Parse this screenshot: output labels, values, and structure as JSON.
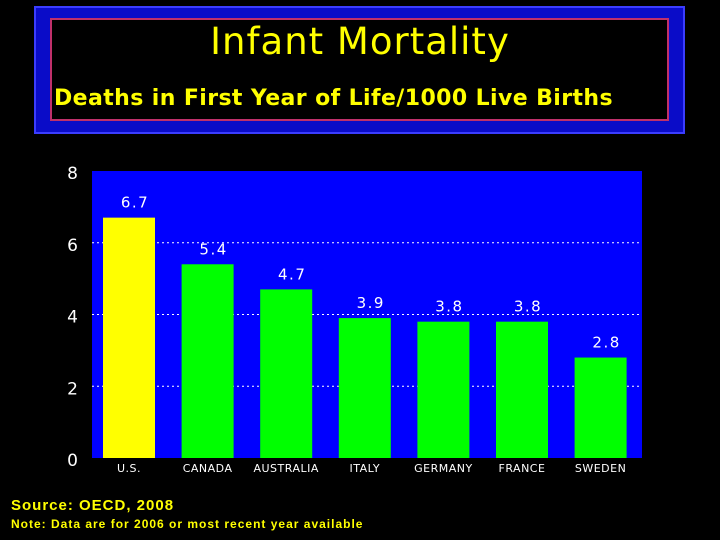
{
  "header": {
    "title": "Infant Mortality",
    "subtitle": "Deaths in First Year of Life/1000 Live Births"
  },
  "footer": {
    "source": "Source: OECD, 2008",
    "note": "Note: Data are for 2006 or most recent year available"
  },
  "chart_data": {
    "type": "bar",
    "categories": [
      "U.S.",
      "CANADA",
      "AUSTRALIA",
      "ITALY",
      "GERMANY",
      "FRANCE",
      "SWEDEN"
    ],
    "values": [
      6.7,
      5.4,
      4.7,
      3.9,
      3.8,
      3.8,
      2.8
    ],
    "value_labels": [
      "6.7",
      "5.4",
      "4.7",
      "3.9",
      "3.8",
      "3.8",
      "2.8"
    ],
    "bar_colors": [
      "#ffff00",
      "#00ff00",
      "#00ff00",
      "#00ff00",
      "#00ff00",
      "#00ff00",
      "#00ff00"
    ],
    "ylim": [
      0,
      8
    ],
    "yticks": [
      "0",
      "2",
      "4",
      "6",
      "8"
    ],
    "grid": true,
    "colors": {
      "plot_background": "#0000ff",
      "text": "#ffffff",
      "grid": "#ffffff"
    }
  }
}
